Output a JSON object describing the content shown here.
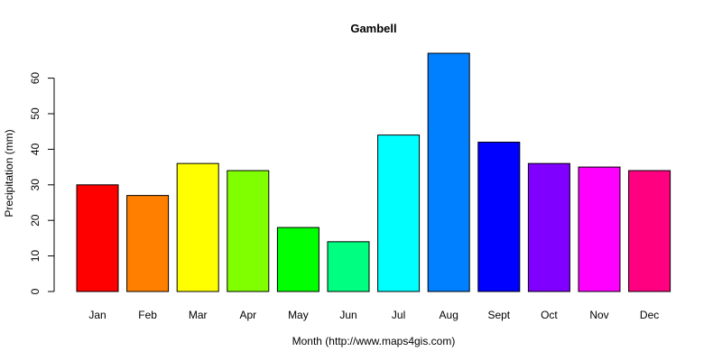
{
  "chart_data": {
    "type": "bar",
    "title": "Gambell",
    "xlabel": "Month (http://www.maps4gis.com)",
    "ylabel": "Precipitation (mm)",
    "categories": [
      "Jan",
      "Feb",
      "Mar",
      "Apr",
      "May",
      "Jun",
      "Jul",
      "Aug",
      "Sept",
      "Oct",
      "Nov",
      "Dec"
    ],
    "values": [
      30,
      27,
      36,
      34,
      18,
      14,
      44,
      67,
      42,
      36,
      35,
      34
    ],
    "colors": [
      "#FF0000",
      "#FF8000",
      "#FFFF00",
      "#80FF00",
      "#00FF00",
      "#00FF80",
      "#00FFFF",
      "#0080FF",
      "#0000FF",
      "#8000FF",
      "#FF00FF",
      "#FF0080"
    ],
    "yticks": [
      0,
      10,
      20,
      30,
      40,
      50,
      60
    ],
    "ylim": [
      0,
      67
    ],
    "grid": false,
    "legend": "none"
  }
}
